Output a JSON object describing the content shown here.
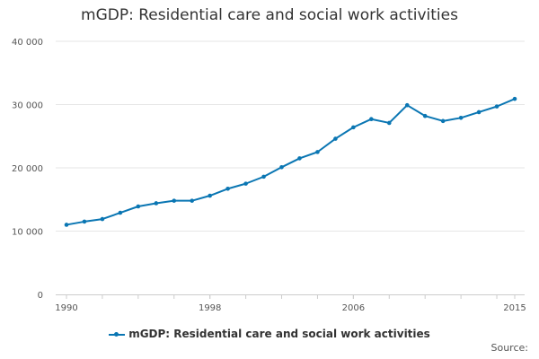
{
  "chart_data": {
    "type": "line",
    "title": "mGDP: Residential care and social work activities",
    "xlabel": "",
    "ylabel": "",
    "x": [
      1990,
      1991,
      1992,
      1993,
      1994,
      1995,
      1996,
      1997,
      1998,
      1999,
      2000,
      2001,
      2002,
      2003,
      2004,
      2005,
      2006,
      2007,
      2008,
      2009,
      2010,
      2011,
      2012,
      2013,
      2014,
      2015
    ],
    "series": [
      {
        "name": "mGDP: Residential care and social work activities",
        "values": [
          11000,
          11500,
          11900,
          12900,
          13900,
          14400,
          14800,
          14800,
          15600,
          16700,
          17500,
          18600,
          20100,
          21500,
          22500,
          24600,
          26400,
          27700,
          27100,
          29900,
          28200,
          27400,
          27900,
          28800,
          29700,
          30900
        ]
      }
    ],
    "xticks": [
      "1990",
      "1998",
      "2006",
      "2015"
    ],
    "yticks": [
      "0",
      "10 000",
      "20 000",
      "30 000",
      "40 000"
    ],
    "ylim": [
      0,
      40000
    ],
    "xlim": [
      1990,
      2015
    ],
    "grid": "horizontal",
    "legend_position": "bottom",
    "color": "#0a76b3"
  },
  "source_label": "Source:"
}
